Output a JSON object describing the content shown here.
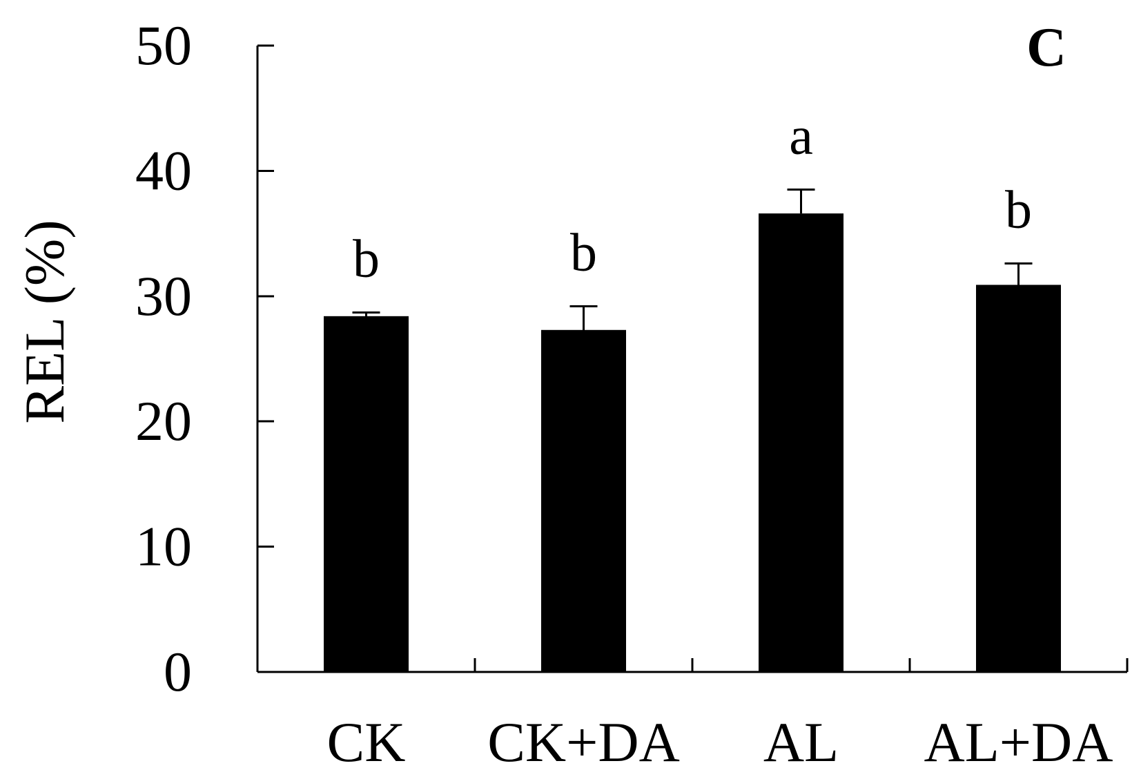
{
  "chart_data": {
    "type": "bar",
    "categories": [
      "CK",
      "CK+DA",
      "AL",
      "AL+DA"
    ],
    "values": [
      28.4,
      27.3,
      36.6,
      30.9
    ],
    "errors": [
      0.3,
      1.9,
      1.9,
      1.7
    ],
    "significance_letters": [
      "b",
      "b",
      "a",
      "b"
    ],
    "panel_label": "C",
    "ylabel": "REL (%)",
    "ylim": [
      0,
      50
    ],
    "yticks": [
      0,
      10,
      20,
      30,
      40,
      50
    ],
    "grid": false,
    "legend": "none",
    "bar_color": "#000000"
  }
}
